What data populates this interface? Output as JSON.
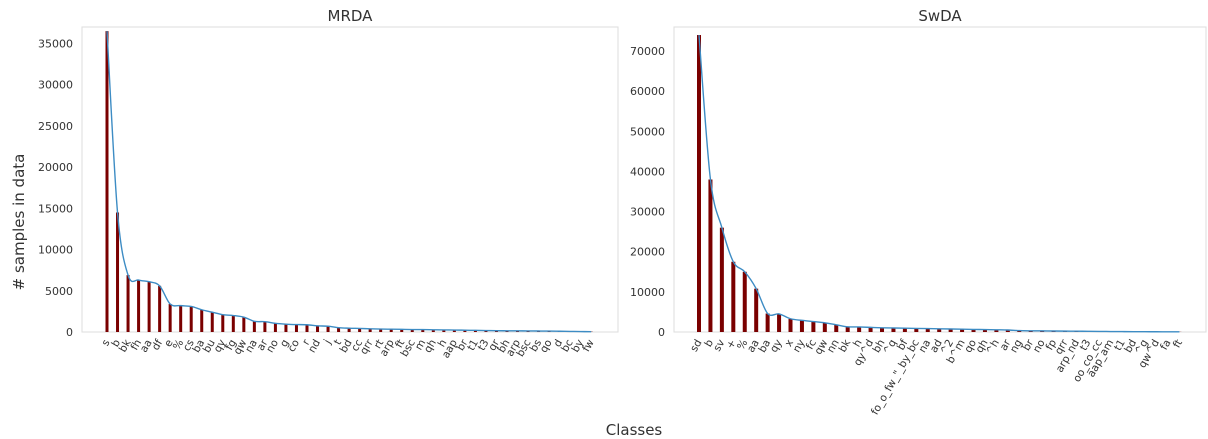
{
  "figure": {
    "ylabel": "# samples in data",
    "xlabel": "Classes"
  },
  "colors": {
    "bar": "#7a0000",
    "curve": "#3d8cc4",
    "frame": "#dddddd"
  },
  "chart_data": [
    {
      "type": "bar",
      "title": "MRDA",
      "ylim": [
        0,
        37000
      ],
      "yticks": [
        0,
        5000,
        10000,
        15000,
        20000,
        25000,
        30000,
        35000
      ],
      "grid": false,
      "overlay": "smoothed line",
      "categories": [
        "s",
        "b",
        "bk",
        "fh",
        "aa",
        "df",
        "e",
        "%",
        "cs",
        "ba",
        "bu",
        "qy",
        "fg",
        "qw",
        "na",
        "ar",
        "no",
        "g",
        "co",
        "r",
        "nd",
        "j",
        "t",
        "bd",
        "cc",
        "qrr",
        "rt",
        "arp",
        "ft",
        "bsc",
        "m",
        "qh",
        "h",
        "aap",
        "br",
        "t1",
        "t3",
        "qr",
        "bh",
        "arp",
        "bsc",
        "bs",
        "qo",
        "d",
        "bc",
        "by",
        "fw"
      ],
      "values": [
        36500,
        14500,
        6900,
        6300,
        6100,
        5600,
        3400,
        3200,
        3100,
        2700,
        2400,
        2100,
        2000,
        1800,
        1300,
        1250,
        1050,
        950,
        900,
        880,
        750,
        700,
        520,
        460,
        430,
        390,
        360,
        340,
        320,
        300,
        290,
        270,
        250,
        240,
        220,
        200,
        180,
        160,
        150,
        140,
        130,
        120,
        110,
        90,
        70,
        50,
        40
      ]
    },
    {
      "type": "bar",
      "title": "SwDA",
      "ylim": [
        0,
        76000
      ],
      "yticks": [
        0,
        10000,
        20000,
        30000,
        40000,
        50000,
        60000,
        70000
      ],
      "grid": false,
      "overlay": "smoothed line",
      "categories": [
        "sd",
        "b",
        "sv",
        "+",
        "%",
        "aa",
        "ba",
        "qy",
        "x",
        "ny",
        "fc",
        "qw",
        "nn",
        "bk",
        "h",
        "qy^d",
        "bh",
        "^q",
        "bf",
        "fo_o_fw_\"_by_bc",
        "na",
        "ad",
        "^2",
        "b^m",
        "qo",
        "qh",
        "^h",
        "ar",
        "ng",
        "br",
        "no",
        "fp",
        "qrr",
        "arp_nd",
        "t3",
        "oo_co_cc",
        "aap_am",
        "t1",
        "bd",
        "^g",
        "qw^d",
        "fa",
        "ft"
      ],
      "values": [
        74000,
        38000,
        26000,
        17500,
        15000,
        10800,
        4600,
        4500,
        3300,
        2900,
        2600,
        2300,
        1800,
        1300,
        1250,
        1150,
        1050,
        1000,
        950,
        900,
        850,
        800,
        750,
        700,
        650,
        600,
        550,
        500,
        350,
        300,
        280,
        250,
        220,
        200,
        170,
        150,
        120,
        100,
        80,
        70,
        60,
        50,
        40
      ]
    }
  ]
}
